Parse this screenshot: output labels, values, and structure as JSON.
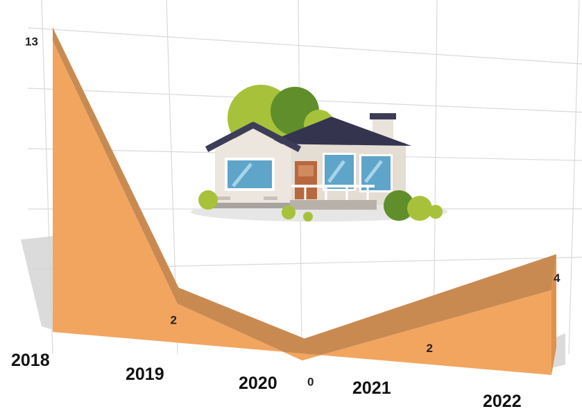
{
  "chart_data": {
    "type": "area",
    "title": "",
    "xlabel": "",
    "ylabel": "",
    "categories": [
      "2018",
      "2019",
      "2020",
      "2021",
      "2022"
    ],
    "values": [
      13,
      2,
      0,
      2,
      4
    ],
    "ylim": [
      0,
      13
    ],
    "grid": true,
    "style": "3d perspective area",
    "colors": {
      "area_front": "#f2a55f",
      "area_top": "#c98a52",
      "grid": "#d9d9d9",
      "shadow": "#d2d2d2"
    }
  },
  "illustration": {
    "icon": "house-icon"
  }
}
